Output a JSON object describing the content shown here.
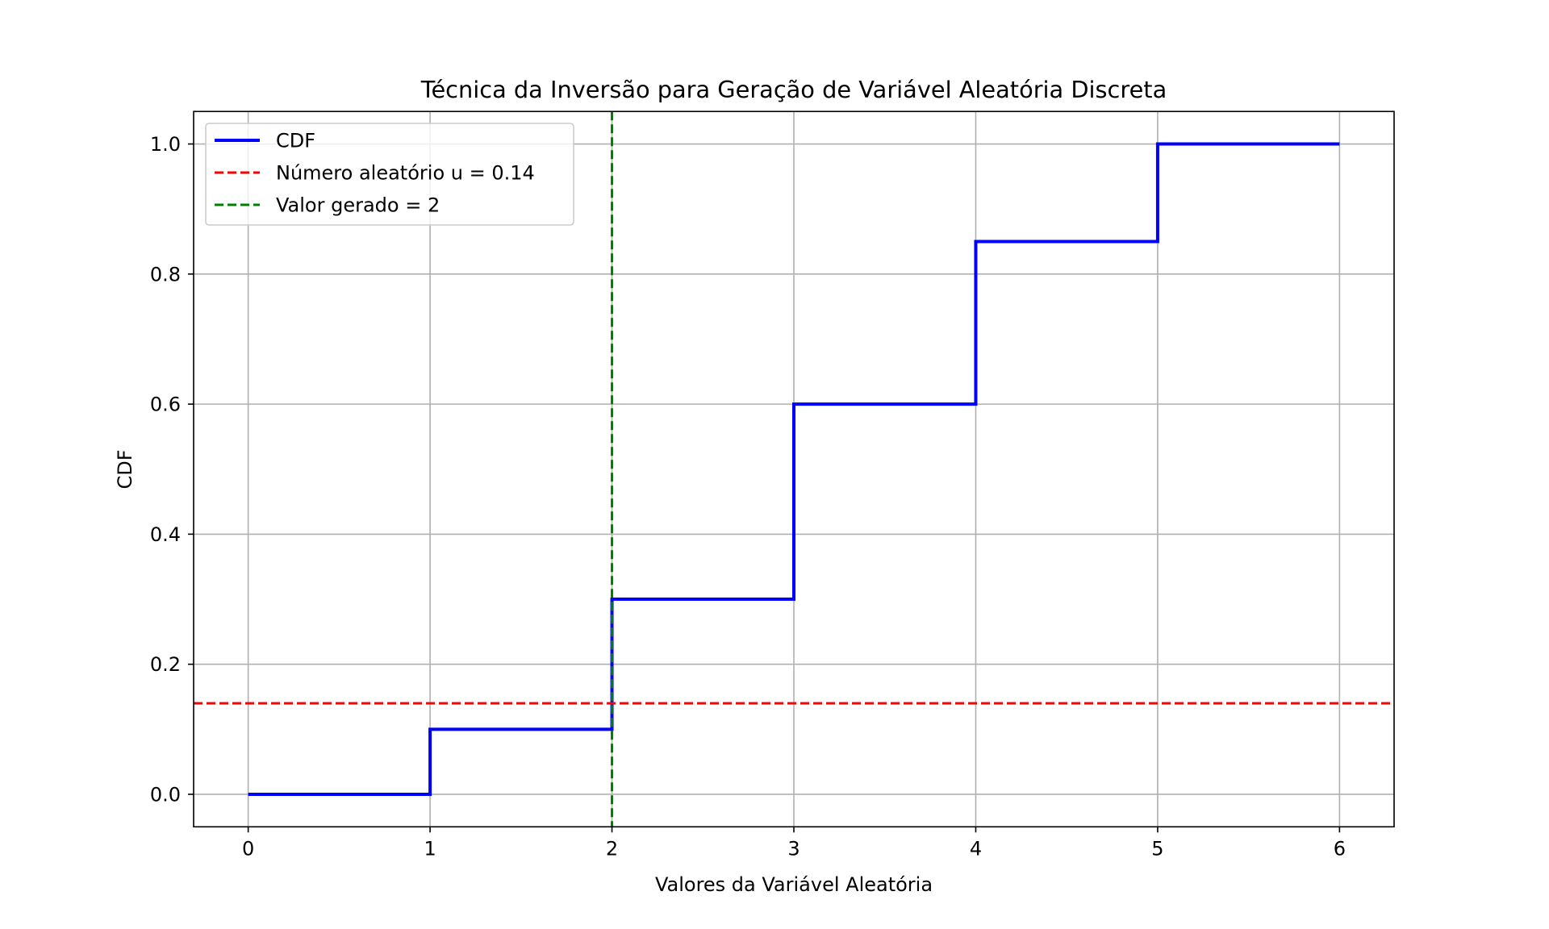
{
  "chart_data": {
    "type": "line",
    "title": "Técnica da Inversão para Geração de Variável Aleatória Discreta",
    "xlabel": "Valores da Variável Aleatória",
    "ylabel": "CDF",
    "xlim": [
      -0.3,
      6.3
    ],
    "ylim": [
      -0.05,
      1.05
    ],
    "xticks": [
      0,
      1,
      2,
      3,
      4,
      5,
      6
    ],
    "xtick_labels": [
      "0",
      "1",
      "2",
      "3",
      "4",
      "5",
      "6"
    ],
    "yticks": [
      0.0,
      0.2,
      0.4,
      0.6,
      0.8,
      1.0
    ],
    "ytick_labels": [
      "0.0",
      "0.2",
      "0.4",
      "0.6",
      "0.8",
      "1.0"
    ],
    "grid": true,
    "legend_position": "upper left",
    "series": [
      {
        "name": "CDF",
        "kind": "step-post",
        "color": "#0000ff",
        "x": [
          0,
          1,
          2,
          3,
          4,
          5,
          6
        ],
        "y": [
          0.0,
          0.1,
          0.3,
          0.6,
          0.85,
          1.0,
          1.0
        ]
      },
      {
        "name": "Número aleatório u = 0.14",
        "kind": "hline",
        "color": "#ff0000",
        "style": "dashed",
        "y": 0.14
      },
      {
        "name": "Valor gerado = 2",
        "kind": "vline",
        "color": "#008000",
        "style": "dashed",
        "x": 2
      }
    ]
  }
}
